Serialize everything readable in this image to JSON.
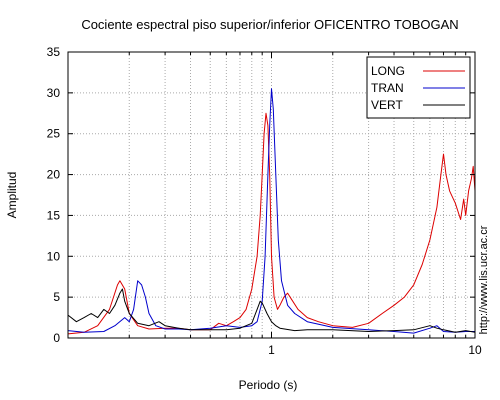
{
  "chart_data": {
    "type": "line",
    "title": "Cociente espectral piso superior/inferior OFICENTRO TOBOGAN",
    "xlabel": "Periodo (s)",
    "ylabel": "Amplitud",
    "side_text": "http://www.lis.ucr.ac.cr",
    "x_scale": "log",
    "xlim": [
      0.1,
      10
    ],
    "ylim": [
      0,
      35
    ],
    "y_ticks": [
      0,
      5,
      10,
      15,
      20,
      25,
      30,
      35
    ],
    "x_tick_labels": [
      {
        "value": 1,
        "label": "1"
      },
      {
        "value": 10,
        "label": "10"
      }
    ],
    "legend_position": "top-right",
    "series": [
      {
        "name": "LONG",
        "color": "#dd0000",
        "points": [
          [
            0.1,
            0.5
          ],
          [
            0.12,
            0.7
          ],
          [
            0.14,
            1.5
          ],
          [
            0.16,
            3.5
          ],
          [
            0.175,
            6.5
          ],
          [
            0.18,
            7.0
          ],
          [
            0.19,
            6.0
          ],
          [
            0.2,
            3.0
          ],
          [
            0.22,
            1.5
          ],
          [
            0.25,
            1.1
          ],
          [
            0.3,
            1.2
          ],
          [
            0.35,
            1.2
          ],
          [
            0.4,
            1.0
          ],
          [
            0.5,
            1.0
          ],
          [
            0.55,
            1.8
          ],
          [
            0.6,
            1.5
          ],
          [
            0.65,
            2.0
          ],
          [
            0.7,
            2.5
          ],
          [
            0.75,
            3.5
          ],
          [
            0.8,
            6.0
          ],
          [
            0.85,
            10.0
          ],
          [
            0.88,
            15.0
          ],
          [
            0.9,
            20.0
          ],
          [
            0.92,
            25.0
          ],
          [
            0.94,
            27.5
          ],
          [
            0.96,
            26.0
          ],
          [
            0.98,
            20.0
          ],
          [
            1.0,
            10.0
          ],
          [
            1.03,
            5.0
          ],
          [
            1.07,
            3.5
          ],
          [
            1.1,
            4.0
          ],
          [
            1.15,
            5.0
          ],
          [
            1.2,
            5.5
          ],
          [
            1.25,
            4.8
          ],
          [
            1.35,
            3.5
          ],
          [
            1.5,
            2.5
          ],
          [
            1.7,
            2.0
          ],
          [
            2.0,
            1.5
          ],
          [
            2.5,
            1.3
          ],
          [
            3.0,
            1.8
          ],
          [
            3.5,
            3.0
          ],
          [
            4.0,
            4.0
          ],
          [
            4.5,
            5.0
          ],
          [
            5.0,
            6.5
          ],
          [
            5.5,
            9.0
          ],
          [
            6.0,
            12.0
          ],
          [
            6.5,
            16.0
          ],
          [
            6.8,
            20.0
          ],
          [
            7.0,
            22.5
          ],
          [
            7.2,
            20.0
          ],
          [
            7.5,
            18.0
          ],
          [
            8.0,
            16.5
          ],
          [
            8.5,
            14.5
          ],
          [
            8.8,
            17.0
          ],
          [
            9.0,
            15.0
          ],
          [
            9.3,
            18.0
          ],
          [
            9.6,
            19.5
          ],
          [
            9.8,
            21.0
          ],
          [
            10.0,
            18.0
          ]
        ]
      },
      {
        "name": "TRAN",
        "color": "#0000cc",
        "points": [
          [
            0.1,
            0.9
          ],
          [
            0.12,
            0.7
          ],
          [
            0.15,
            0.8
          ],
          [
            0.17,
            1.5
          ],
          [
            0.19,
            2.5
          ],
          [
            0.2,
            2.0
          ],
          [
            0.21,
            3.5
          ],
          [
            0.22,
            7.0
          ],
          [
            0.23,
            6.5
          ],
          [
            0.24,
            5.0
          ],
          [
            0.25,
            3.0
          ],
          [
            0.27,
            1.5
          ],
          [
            0.3,
            1.1
          ],
          [
            0.35,
            1.1
          ],
          [
            0.4,
            1.0
          ],
          [
            0.5,
            1.2
          ],
          [
            0.6,
            1.5
          ],
          [
            0.7,
            1.3
          ],
          [
            0.8,
            1.5
          ],
          [
            0.85,
            2.0
          ],
          [
            0.9,
            4.5
          ],
          [
            0.93,
            10.0
          ],
          [
            0.96,
            20.0
          ],
          [
            0.98,
            26.0
          ],
          [
            1.0,
            30.5
          ],
          [
            1.02,
            28.0
          ],
          [
            1.05,
            20.0
          ],
          [
            1.08,
            12.0
          ],
          [
            1.12,
            7.0
          ],
          [
            1.2,
            4.0
          ],
          [
            1.3,
            3.0
          ],
          [
            1.5,
            2.0
          ],
          [
            2.0,
            1.3
          ],
          [
            3.0,
            1.0
          ],
          [
            4.0,
            0.8
          ],
          [
            5.0,
            0.6
          ],
          [
            6.0,
            1.2
          ],
          [
            6.5,
            1.5
          ],
          [
            7.0,
            0.8
          ],
          [
            8.0,
            0.7
          ],
          [
            9.0,
            0.8
          ],
          [
            10.0,
            0.8
          ]
        ]
      },
      {
        "name": "VERT",
        "color": "#000000",
        "points": [
          [
            0.1,
            2.8
          ],
          [
            0.11,
            2.0
          ],
          [
            0.12,
            2.5
          ],
          [
            0.13,
            3.0
          ],
          [
            0.14,
            2.5
          ],
          [
            0.15,
            3.5
          ],
          [
            0.16,
            3.0
          ],
          [
            0.17,
            4.0
          ],
          [
            0.18,
            5.5
          ],
          [
            0.185,
            6.0
          ],
          [
            0.19,
            4.5
          ],
          [
            0.2,
            3.0
          ],
          [
            0.22,
            1.8
          ],
          [
            0.25,
            1.5
          ],
          [
            0.28,
            2.0
          ],
          [
            0.3,
            1.5
          ],
          [
            0.35,
            1.2
          ],
          [
            0.4,
            1.0
          ],
          [
            0.5,
            1.0
          ],
          [
            0.6,
            1.0
          ],
          [
            0.7,
            1.2
          ],
          [
            0.8,
            1.8
          ],
          [
            0.85,
            3.5
          ],
          [
            0.88,
            4.5
          ],
          [
            0.9,
            4.3
          ],
          [
            0.95,
            3.0
          ],
          [
            1.0,
            2.0
          ],
          [
            1.05,
            1.5
          ],
          [
            1.1,
            1.2
          ],
          [
            1.3,
            0.9
          ],
          [
            1.5,
            1.0
          ],
          [
            2.0,
            1.0
          ],
          [
            3.0,
            0.8
          ],
          [
            4.0,
            0.9
          ],
          [
            5.0,
            1.0
          ],
          [
            6.0,
            1.5
          ],
          [
            6.5,
            1.2
          ],
          [
            7.0,
            1.0
          ],
          [
            8.0,
            0.7
          ],
          [
            9.0,
            0.9
          ],
          [
            10.0,
            0.7
          ]
        ]
      }
    ]
  }
}
